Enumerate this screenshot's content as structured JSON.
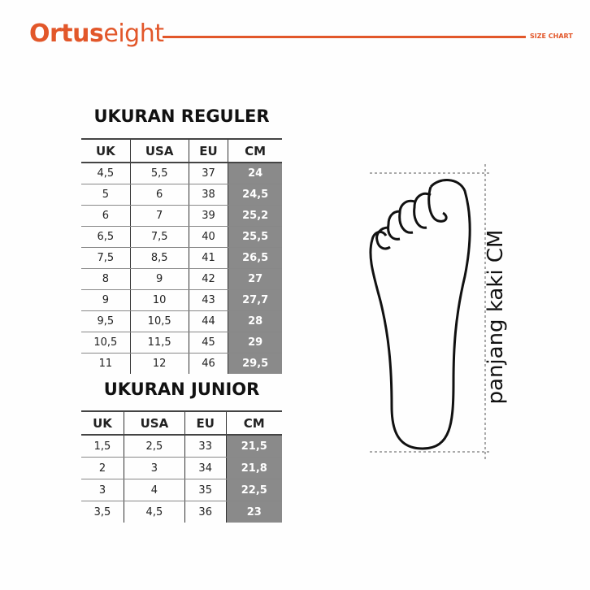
{
  "header": {
    "brand_bold": "Ortus",
    "brand_light": "eight",
    "section": "SIZE CHART",
    "accent": "#e2572a"
  },
  "regular": {
    "title": "UKURAN REGULER",
    "columns": [
      "UK",
      "USA",
      "EU",
      "CM"
    ],
    "rows": [
      [
        "4,5",
        "5,5",
        "37",
        "24"
      ],
      [
        "5",
        "6",
        "38",
        "24,5"
      ],
      [
        "6",
        "7",
        "39",
        "25,2"
      ],
      [
        "6,5",
        "7,5",
        "40",
        "25,5"
      ],
      [
        "7,5",
        "8,5",
        "41",
        "26,5"
      ],
      [
        "8",
        "9",
        "42",
        "27"
      ],
      [
        "9",
        "10",
        "43",
        "27,7"
      ],
      [
        "9,5",
        "10,5",
        "44",
        "28"
      ],
      [
        "10,5",
        "11,5",
        "45",
        "29"
      ],
      [
        "11",
        "12",
        "46",
        "29,5"
      ]
    ]
  },
  "junior": {
    "title": "UKURAN JUNIOR",
    "columns": [
      "UK",
      "USA",
      "EU",
      "CM"
    ],
    "rows": [
      [
        "1,5",
        "2,5",
        "33",
        "21,5"
      ],
      [
        "2",
        "3",
        "34",
        "21,8"
      ],
      [
        "3",
        "4",
        "35",
        "22,5"
      ],
      [
        "3,5",
        "4,5",
        "36",
        "23"
      ]
    ]
  },
  "diagram": {
    "label": "panjang kaki CM"
  }
}
